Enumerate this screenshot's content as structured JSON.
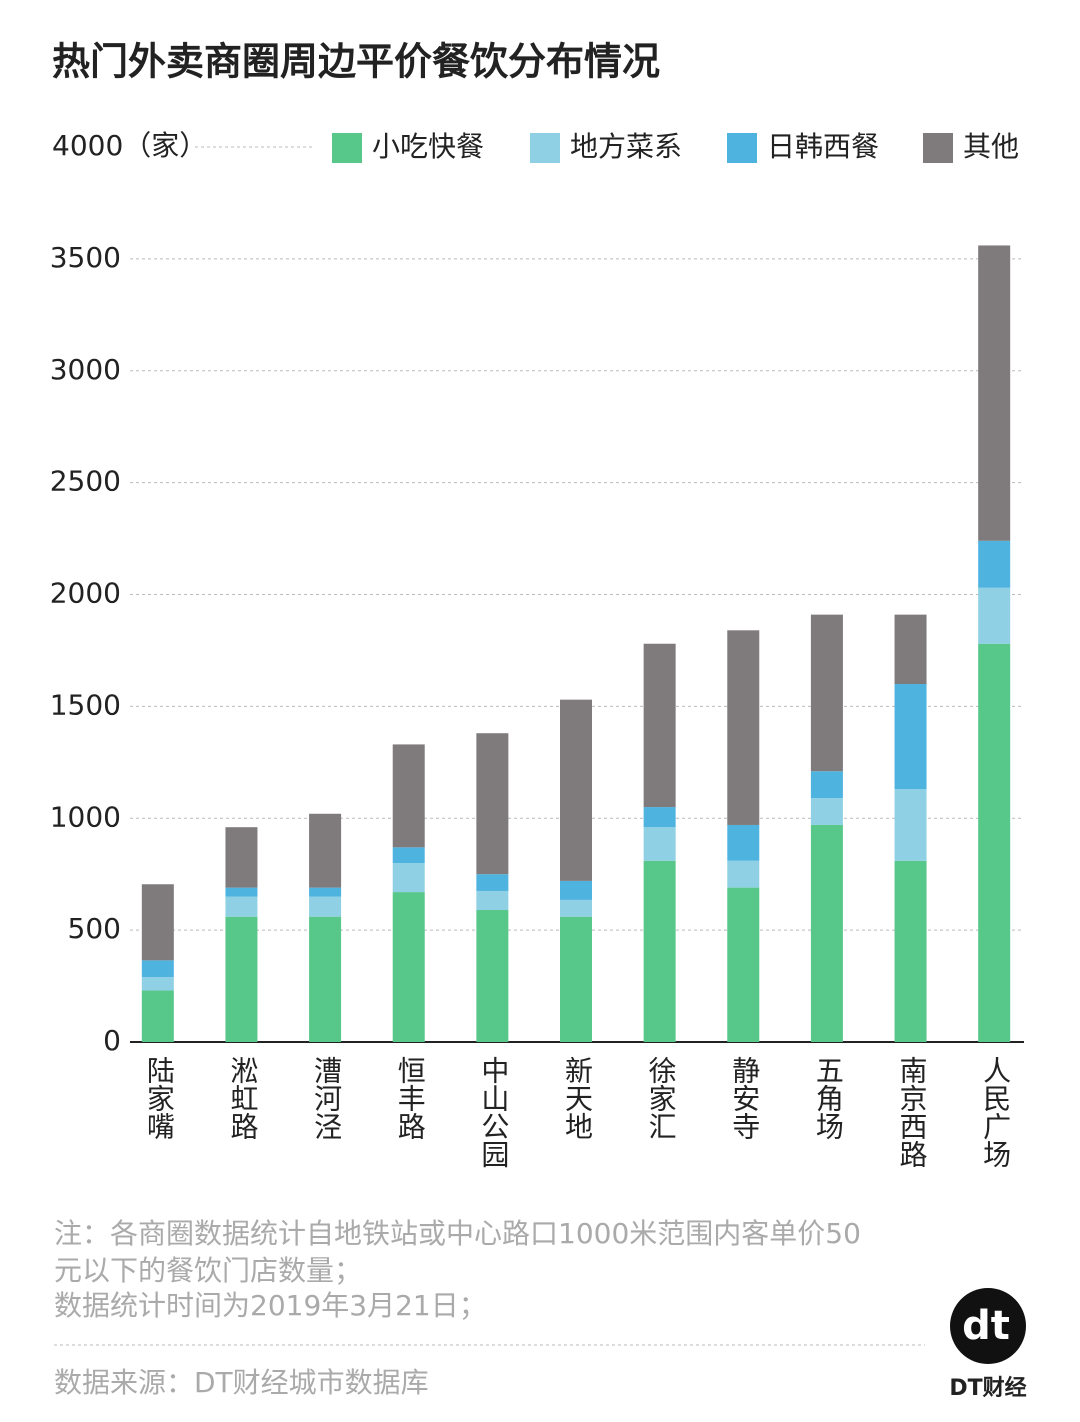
{
  "chart_data": {
    "type": "stacked_bar",
    "title": "热门外卖商圈周边平价餐饮分布情况",
    "categories": [
      "陆家嘴",
      "淞虹路",
      "漕河泾",
      "恒丰路",
      "中山公园",
      "新天地",
      "徐家汇",
      "静安寺",
      "五角场",
      "南京西路",
      "人民广场"
    ],
    "series": [
      {
        "name": "小吃快餐",
        "color": "#57c78a",
        "values": [
          230,
          560,
          560,
          670,
          590,
          560,
          810,
          690,
          970,
          810,
          1780
        ]
      },
      {
        "name": "地方菜系",
        "color": "#8fd0e4",
        "values": [
          60,
          90,
          90,
          130,
          85,
          75,
          150,
          120,
          120,
          320,
          250
        ]
      },
      {
        "name": "日韩西餐",
        "color": "#4fb3e0",
        "values": [
          75,
          40,
          40,
          70,
          75,
          85,
          90,
          160,
          120,
          470,
          210
        ]
      },
      {
        "name": "其他",
        "color": "#7f7b7c",
        "values": [
          340,
          270,
          330,
          460,
          630,
          810,
          730,
          870,
          700,
          310,
          1320
        ]
      }
    ],
    "ylim": [
      0,
      4000
    ],
    "yticks": [
      0,
      500,
      1000,
      1500,
      2000,
      2500,
      3000,
      3500,
      {
        "value": 4000,
        "label": "4000（家）"
      }
    ],
    "grid": true,
    "notes": [
      "注：各商圈数据统计自地铁站或中心路口1000米范围内客单价50",
      "元以下的餐饮门店数量；",
      "数据统计时间为2019年3月21日；"
    ],
    "source": "数据来源：DT财经城市数据库",
    "logo": "dt",
    "brand": "DT财经"
  }
}
